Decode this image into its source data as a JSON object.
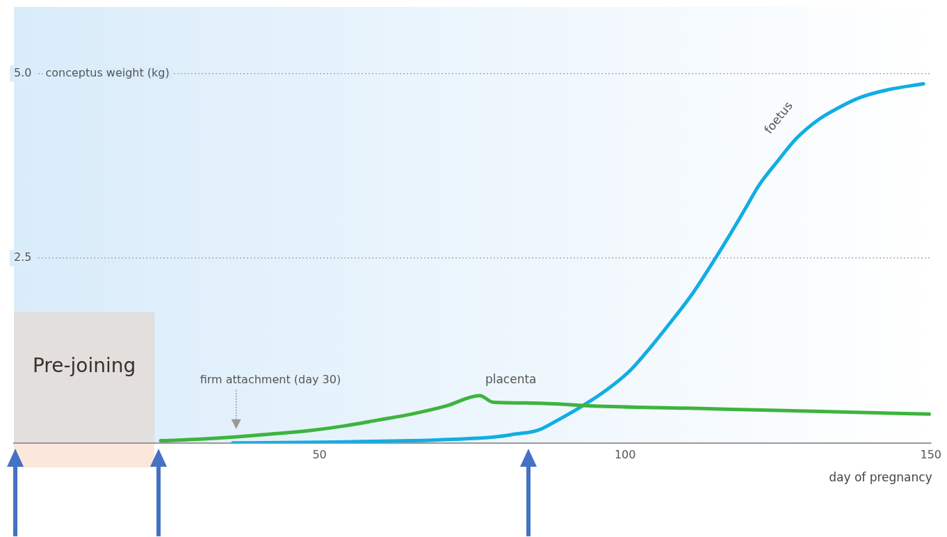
{
  "chart_data": {
    "type": "line",
    "xlabel": "day of pregnancy",
    "ylabel": "conceptus weight (kg)",
    "xlim": [
      0,
      150
    ],
    "xticks": [
      50,
      100,
      150
    ],
    "ylim": [
      0,
      5.9
    ],
    "yticks": [
      {
        "value": 2.5,
        "label": "2.5"
      },
      {
        "value": 5,
        "label": "5.0"
      }
    ],
    "grid": "y",
    "legend": false,
    "line_style": "solid",
    "marker": "none",
    "series": [
      {
        "name": "placenta",
        "color": "#3db43d",
        "x": [
          24,
          30,
          36,
          42,
          48.6,
          54,
          59.6,
          65,
          70.7,
          76.2,
          78.4,
          85,
          95,
          110,
          125,
          140,
          149.8
        ],
        "values": [
          0.03,
          0.05,
          0.08,
          0.12,
          0.17,
          0.23,
          0.31,
          0.39,
          0.5,
          0.64,
          0.55,
          0.54,
          0.5,
          0.47,
          0.44,
          0.41,
          0.39
        ]
      },
      {
        "name": "foetus",
        "color": "#12ade3",
        "x": [
          35.8,
          50,
          65,
          72,
          78.5,
          82,
          85.7,
          89,
          93,
          97,
          100.8,
          104,
          107.5,
          111,
          114,
          117,
          119.5,
          122,
          125,
          128,
          131.7,
          135,
          138.3,
          143,
          148.8
        ],
        "values": [
          0,
          0.01,
          0.03,
          0.05,
          0.08,
          0.12,
          0.17,
          0.31,
          0.5,
          0.72,
          0.98,
          1.28,
          1.64,
          2.02,
          2.4,
          2.8,
          3.15,
          3.5,
          3.82,
          4.12,
          4.38,
          4.54,
          4.67,
          4.78,
          4.86
        ]
      }
    ],
    "bands": [
      {
        "axis": "x",
        "from": 0,
        "to": 23,
        "label": "Pre-joining",
        "color": "#e2dfdc"
      }
    ],
    "annotations": [
      "firm attachment (day 30)"
    ]
  }
}
